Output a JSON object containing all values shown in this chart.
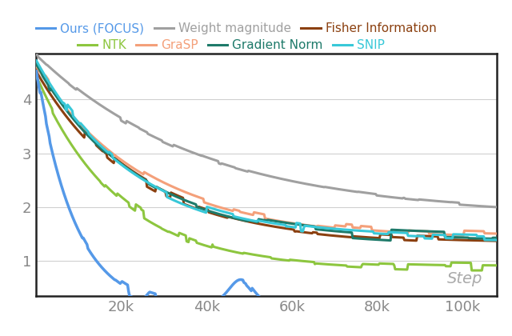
{
  "step_label": "Step",
  "x_ticks": [
    20000,
    40000,
    60000,
    80000,
    100000
  ],
  "x_tick_labels": [
    "20k",
    "40k",
    "60k",
    "80k",
    "100k"
  ],
  "ylim": [
    0.35,
    4.85
  ],
  "xlim": [
    0,
    108000
  ],
  "y_ticks": [
    1,
    2,
    3,
    4
  ],
  "series": {
    "Ours (FOCUS)": {
      "color": "#5599e8",
      "linewidth": 2.5,
      "zorder": 10
    },
    "Weight magnitude": {
      "color": "#a0a0a0",
      "linewidth": 2.2,
      "zorder": 3
    },
    "Fisher Information": {
      "color": "#8b4010",
      "linewidth": 2.2,
      "zorder": 6
    },
    "NTK": {
      "color": "#8dc63f",
      "linewidth": 2.2,
      "zorder": 5
    },
    "GraSP": {
      "color": "#f4a07a",
      "linewidth": 2.2,
      "zorder": 7
    },
    "Gradient Norm": {
      "color": "#1e7a6a",
      "linewidth": 2.2,
      "zorder": 8
    },
    "SNIP": {
      "color": "#38c8d8",
      "linewidth": 2.2,
      "zorder": 9
    }
  },
  "legend_row1": [
    "Ours (FOCUS)",
    "Weight magnitude",
    "Fisher Information"
  ],
  "legend_row2": [
    "NTK",
    "GraSP",
    "Gradient Norm",
    "SNIP"
  ],
  "bg_color": "#ffffff",
  "grid_color": "#d0d0d0"
}
